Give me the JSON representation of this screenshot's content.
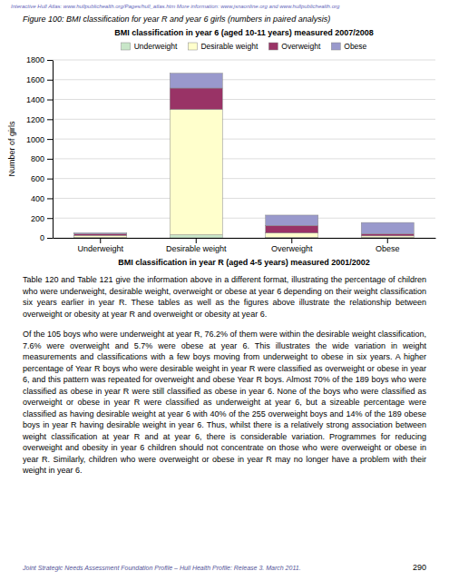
{
  "chart_data": {
    "type": "bar",
    "stacked": true,
    "title": "BMI classification in year 6 (aged 10-11 years) measured 2007/2008",
    "xlabel": "BMI classification in year R (aged 4-5 years) measured 2001/2002",
    "ylabel": "Number of girls",
    "categories": [
      "Underweight",
      "Desirable weight",
      "Overweight",
      "Obese"
    ],
    "series": [
      {
        "name": "Underweight",
        "color": "#c8e6c8",
        "values": [
          5,
          30,
          5,
          5
        ]
      },
      {
        "name": "Desirable weight",
        "color": "#ffffcc",
        "values": [
          20,
          1270,
          45,
          15
        ]
      },
      {
        "name": "Overweight",
        "color": "#993366",
        "values": [
          15,
          215,
          75,
          20
        ]
      },
      {
        "name": "Obese",
        "color": "#9999cc",
        "values": [
          10,
          150,
          105,
          115
        ]
      }
    ],
    "ylim": [
      0,
      1800
    ],
    "yticks": [
      0,
      200,
      400,
      600,
      800,
      1000,
      1200,
      1400,
      1600,
      1800
    ],
    "grid": true,
    "legend": "top"
  },
  "header": "Interactive Hull Atlas: www.hullpublichealth.org/Pages/hull_atlas.htm  More information: www.jsnaonline.org and www.hullpublichealth.org",
  "caption": "Figure 100: BMI classification for year R and year 6 girls (numbers in paired analysis)",
  "paragraphs": [
    "Table 120 and Table 121 give the information above in a different format, illustrating the percentage of children who were underweight, desirable weight, overweight or obese at year 6 depending on their weight classification six years earlier in year R.  These tables as well as the figures above illustrate the relationship between overweight or obesity at year R and overweight or obesity at year 6.",
    "Of the 105 boys who were underweight at year R, 76.2% of them were within the desirable weight classification, 7.6% were overweight and 5.7% were obese at year 6.  This illustrates the wide variation in weight measurements and classifications with a few boys moving from underweight to obese in six years.  A higher percentage of Year R boys who were desirable weight in year R were classified as overweight or obese in year 6, and this pattern was repeated for overweight and obese Year R boys.  Almost 70% of the 189 boys who were classified as obese in year R were still classified as obese in year 6.  None of the boys who were classified as overweight or obese in year R were classified as underweight at year 6, but a sizeable percentage were classified as having desirable weight at year 6 with 40% of the 255 overweight boys and 14% of the 189 obese boys in year R having desirable weight in year 6.  Thus, whilst there is a relatively strong association between weight classification at year R and at year 6, there is considerable variation.  Programmes for reducing overweight and obesity in year 6 children should not concentrate on those who were overweight or obese in year R.  Similarly, children who were overweight or obese in year R may no longer have a problem with their weight in year 6."
  ],
  "footer": "Joint Strategic Needs Assessment Foundation Profile – Hull Health Profile: Release 3.  March 2011.",
  "page_number": "290"
}
